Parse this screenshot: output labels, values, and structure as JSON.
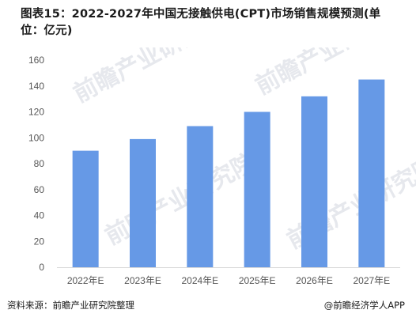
{
  "title": "图表15：2022-2027年中国无接触供电(CPT)市场销售规模预测(单位：亿元)",
  "source": "资料来源：前瞻产业研究院整理",
  "brand": "@前瞻经济学人APP",
  "watermark": "前瞻产业研究院",
  "colors": {
    "bar": "#6699e6",
    "axis": "#d9d9d9"
  },
  "chart_data": {
    "type": "bar",
    "categories": [
      "2022年E",
      "2023年E",
      "2024年E",
      "2025年E",
      "2026年E",
      "2027年E"
    ],
    "values": [
      90,
      99,
      109,
      120,
      132,
      145
    ],
    "ylim": [
      0,
      160
    ],
    "yticks": [
      0,
      20,
      40,
      60,
      80,
      100,
      120,
      140,
      160
    ],
    "grid": false,
    "legend": "none"
  }
}
